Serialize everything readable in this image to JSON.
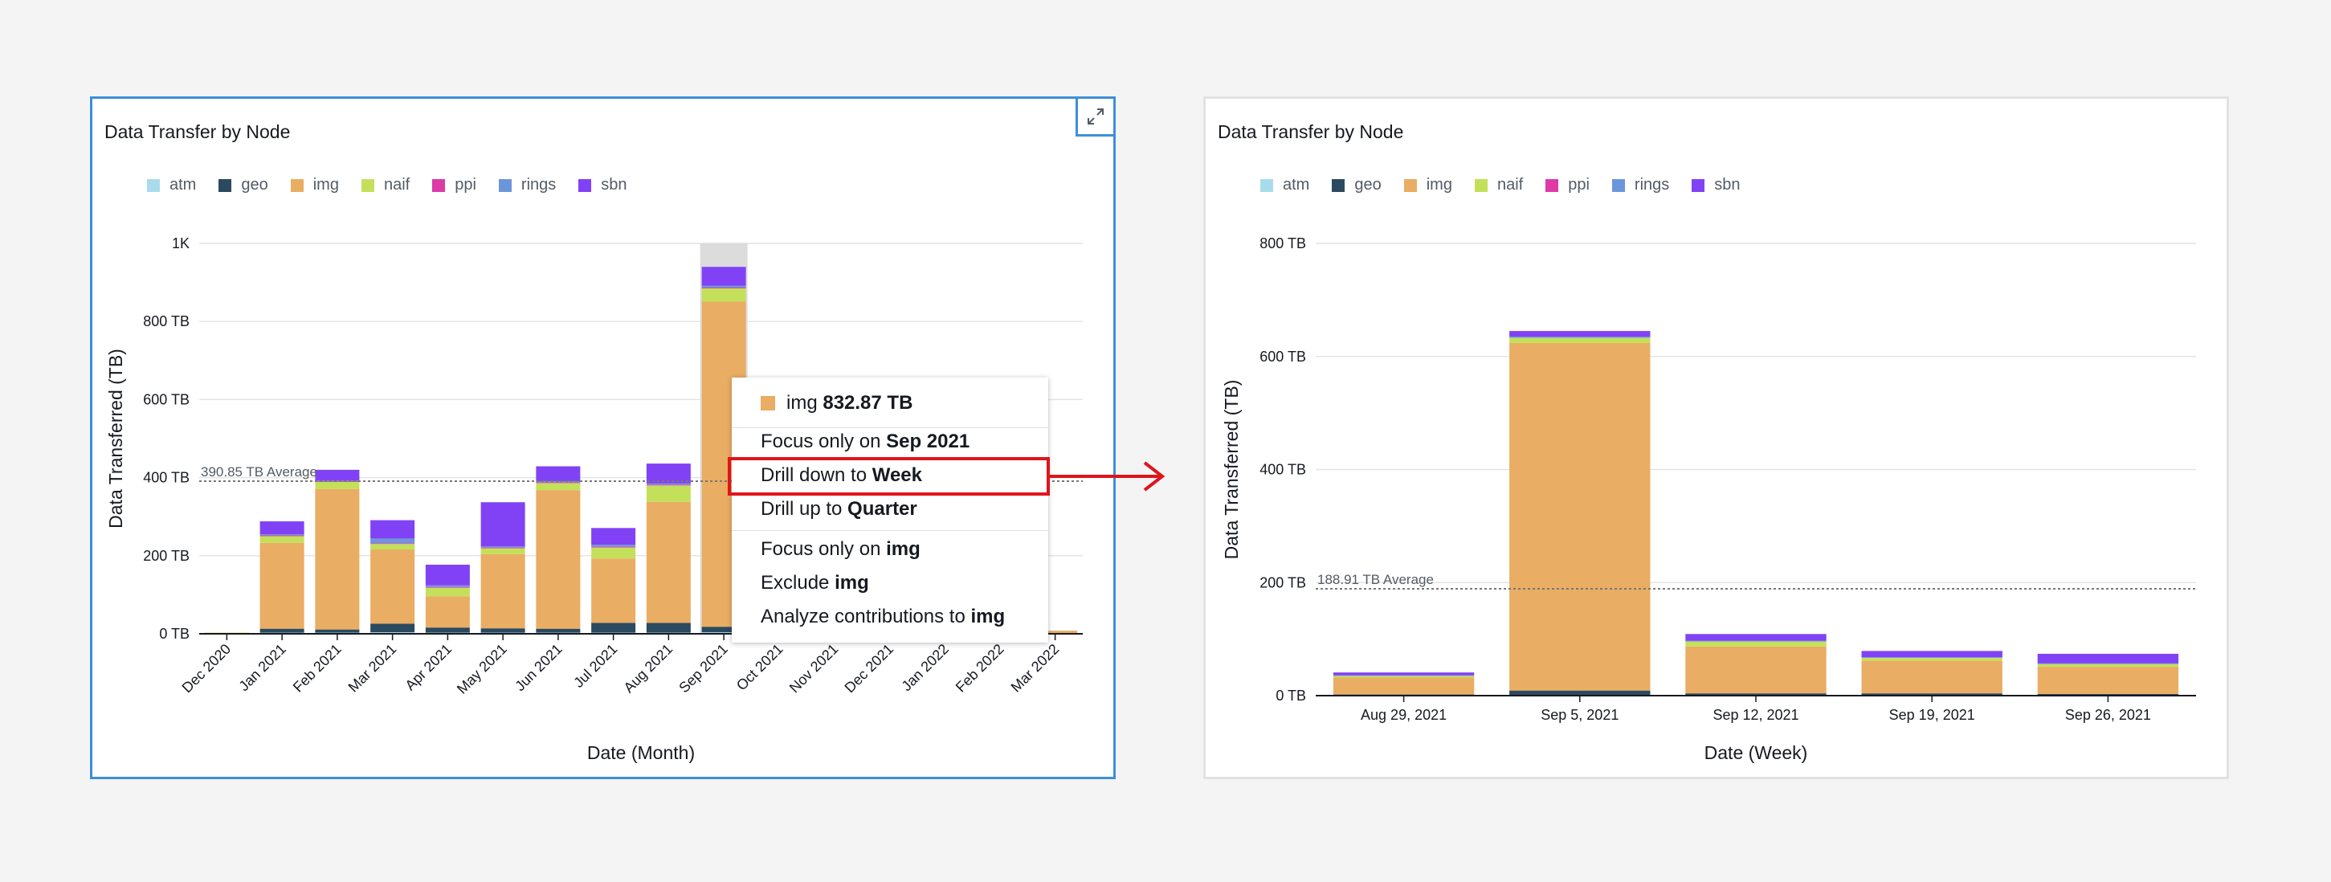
{
  "colors": {
    "atm": "#a8dcec",
    "geo": "#2b4a5f",
    "img": "#e9ad63",
    "naif": "#c4e05a",
    "ppi": "#dd3aa8",
    "rings": "#6c96dc",
    "sbn": "#8142f5",
    "highlight": "#e0141b",
    "accent": "#3d8fd8"
  },
  "legend": [
    {
      "key": "atm",
      "label": "atm"
    },
    {
      "key": "geo",
      "label": "geo"
    },
    {
      "key": "img",
      "label": "img"
    },
    {
      "key": "naif",
      "label": "naif"
    },
    {
      "key": "ppi",
      "label": "ppi"
    },
    {
      "key": "rings",
      "label": "rings"
    },
    {
      "key": "sbn",
      "label": "sbn"
    }
  ],
  "left_panel": {
    "expand_icon": "expand-icon"
  },
  "chart_data": [
    {
      "type": "bar",
      "stacked": true,
      "title": "Data Transfer by Node",
      "xlabel": "Date (Month)",
      "ylabel": "Data Transferred (TB)",
      "ylim": [
        0,
        1000
      ],
      "yticks": [
        0,
        200,
        400,
        600,
        800,
        1000
      ],
      "ytick_labels": [
        "0 TB",
        "200 TB",
        "400 TB",
        "600 TB",
        "800 TB",
        "1K"
      ],
      "grid": true,
      "legend_position": "top-left",
      "categories": [
        "Dec 2020",
        "Jan 2021",
        "Feb 2021",
        "Mar 2021",
        "Apr 2021",
        "May 2021",
        "Jun 2021",
        "Jul 2021",
        "Aug 2021",
        "Sep 2021",
        "Oct 2021",
        "Nov 2021",
        "Dec 2021",
        "Jan 2022",
        "Feb 2022",
        "Mar 2022"
      ],
      "highlighted_category": "Sep 2021",
      "average_line": {
        "value": 390.85,
        "label": "390.85 TB Average"
      },
      "series": [
        {
          "name": "atm",
          "values": [
            0,
            3,
            3,
            4,
            3,
            3,
            3,
            3,
            3,
            4,
            0,
            0,
            0,
            0,
            0,
            0
          ]
        },
        {
          "name": "geo",
          "values": [
            1,
            10,
            8,
            22,
            13,
            11,
            10,
            25,
            25,
            14,
            0,
            0,
            0,
            0,
            0,
            0
          ]
        },
        {
          "name": "img",
          "values": [
            0,
            220,
            360,
            190,
            80,
            190,
            355,
            165,
            310,
            832.87,
            0,
            0,
            0,
            0,
            0,
            8
          ]
        },
        {
          "name": "naif",
          "values": [
            2,
            17,
            18,
            14,
            22,
            15,
            18,
            28,
            42,
            34,
            0,
            0,
            0,
            0,
            0,
            0
          ]
        },
        {
          "name": "ppi",
          "values": [
            0,
            2,
            2,
            2,
            2,
            2,
            2,
            2,
            2,
            2,
            0,
            0,
            0,
            0,
            0,
            0
          ]
        },
        {
          "name": "rings",
          "values": [
            0,
            3,
            2,
            12,
            4,
            3,
            3,
            5,
            3,
            5,
            0,
            0,
            0,
            0,
            0,
            0
          ]
        },
        {
          "name": "sbn",
          "values": [
            0,
            33,
            27,
            47,
            53,
            113,
            38,
            43,
            51,
            48,
            0,
            0,
            0,
            0,
            0,
            0
          ]
        }
      ]
    },
    {
      "type": "bar",
      "stacked": true,
      "title": "Data Transfer by Node",
      "xlabel": "Date (Week)",
      "ylabel": "Data Transferred (TB)",
      "ylim": [
        0,
        800
      ],
      "yticks": [
        0,
        200,
        400,
        600,
        800
      ],
      "ytick_labels": [
        "0 TB",
        "200 TB",
        "400 TB",
        "600 TB",
        "800 TB"
      ],
      "grid": true,
      "legend_position": "top-left",
      "categories": [
        "Aug 29, 2021",
        "Sep 5, 2021",
        "Sep 12, 2021",
        "Sep 19, 2021",
        "Sep 26, 2021"
      ],
      "average_line": {
        "value": 188.91,
        "label": "188.91 TB Average"
      },
      "series": [
        {
          "name": "atm",
          "values": [
            0.5,
            1,
            1,
            1,
            1
          ]
        },
        {
          "name": "geo",
          "values": [
            1.5,
            8,
            3,
            3,
            2
          ]
        },
        {
          "name": "img",
          "values": [
            30,
            615,
            83,
            58,
            48
          ]
        },
        {
          "name": "naif",
          "values": [
            3,
            9,
            9,
            5,
            5
          ]
        },
        {
          "name": "ppi",
          "values": [
            0,
            0,
            0,
            0,
            0
          ]
        },
        {
          "name": "rings",
          "values": [
            1,
            2,
            1,
            1,
            1
          ]
        },
        {
          "name": "sbn",
          "values": [
            5,
            10,
            12,
            11,
            17
          ]
        }
      ]
    }
  ],
  "context_menu": {
    "header_series": "img",
    "header_value": "832.87 TB",
    "items": [
      {
        "prefix": "Focus only on ",
        "bold": "Sep 2021"
      },
      {
        "prefix": "Drill down to ",
        "bold": "Week"
      },
      {
        "prefix": "Drill up to ",
        "bold": "Quarter"
      },
      {
        "prefix": "Focus only on ",
        "bold": "img"
      },
      {
        "prefix": "Exclude ",
        "bold": "img"
      },
      {
        "prefix": "Analyze contributions to ",
        "bold": "img"
      }
    ]
  }
}
